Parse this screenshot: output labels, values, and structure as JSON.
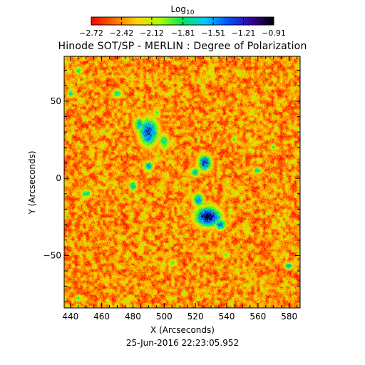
{
  "chart_data": {
    "type": "heatmap",
    "title": "Hinode SOT/SP - MERLIN : Degree of Polarization",
    "xlabel": "X (Arcseconds)",
    "ylabel": "Y (Arcseconds)",
    "timestamp": "25-Jun-2016 22:23:05.952",
    "xlim": [
      436,
      587
    ],
    "ylim": [
      -84,
      79
    ],
    "x_ticks": [
      440,
      460,
      480,
      500,
      520,
      540,
      560,
      580
    ],
    "y_ticks": [
      -50,
      0,
      50
    ],
    "x_tick_labels": [
      "440",
      "460",
      "480",
      "500",
      "520",
      "540",
      "560",
      "580"
    ],
    "y_tick_labels": [
      "−50",
      "0",
      "50"
    ],
    "colorbar": {
      "title_base": "Log",
      "title_sub": "10",
      "colormap": "rainbow-reversed",
      "range": [
        -2.72,
        -0.91
      ],
      "tick_values": [
        -2.72,
        -2.42,
        -2.12,
        -1.81,
        -1.51,
        -1.21,
        -0.91
      ],
      "tick_labels": [
        "−2.72",
        "−2.42",
        "−2.12",
        "−1.81",
        "−1.51",
        "−1.21",
        "−0.91"
      ],
      "colors": [
        "#ff0000",
        "#ff6a00",
        "#ffd200",
        "#aaff00",
        "#00e55a",
        "#00c8ff",
        "#0050ff",
        "#3a00a0",
        "#000000"
      ]
    },
    "background_level": -2.72,
    "regions": [
      {
        "x": 490,
        "y": 30,
        "rx": 7,
        "ry": 10,
        "peak": -1.3
      },
      {
        "x": 484,
        "y": 35,
        "rx": 4,
        "ry": 5,
        "peak": -1.55
      },
      {
        "x": 500,
        "y": 24,
        "rx": 3.5,
        "ry": 6,
        "peak": -1.7
      },
      {
        "x": 495,
        "y": 42,
        "rx": 3,
        "ry": 3.5,
        "peak": -1.9
      },
      {
        "x": 528,
        "y": -25,
        "rx": 9,
        "ry": 7,
        "peak": -1.0
      },
      {
        "x": 522,
        "y": -14,
        "rx": 4,
        "ry": 5,
        "peak": -1.5
      },
      {
        "x": 536,
        "y": -30,
        "rx": 4,
        "ry": 4,
        "peak": -1.4
      },
      {
        "x": 526,
        "y": 10,
        "rx": 5,
        "ry": 6,
        "peak": -1.3
      },
      {
        "x": 520,
        "y": 4,
        "rx": 3.5,
        "ry": 3.5,
        "peak": -1.6
      },
      {
        "x": 490,
        "y": 8,
        "rx": 3.5,
        "ry": 3.5,
        "peak": -1.5
      },
      {
        "x": 480,
        "y": -5,
        "rx": 3,
        "ry": 4,
        "peak": -1.6
      },
      {
        "x": 470,
        "y": 55,
        "rx": 4,
        "ry": 3.5,
        "peak": -1.8
      },
      {
        "x": 445,
        "y": 70,
        "rx": 3,
        "ry": 3,
        "peak": -1.8
      },
      {
        "x": 440,
        "y": 55,
        "rx": 2.5,
        "ry": 3,
        "peak": -1.7
      },
      {
        "x": 560,
        "y": 5,
        "rx": 3.5,
        "ry": 2.5,
        "peak": -1.7
      },
      {
        "x": 570,
        "y": 20,
        "rx": 2.5,
        "ry": 2.5,
        "peak": -1.9
      },
      {
        "x": 450,
        "y": -10,
        "rx": 4,
        "ry": 3,
        "peak": -1.7
      },
      {
        "x": 580,
        "y": -57,
        "rx": 3.5,
        "ry": 2.5,
        "peak": -1.6
      },
      {
        "x": 505,
        "y": -55,
        "rx": 3,
        "ry": 3,
        "peak": -1.9
      },
      {
        "x": 545,
        "y": 25,
        "rx": 2.5,
        "ry": 2.5,
        "peak": -1.9
      },
      {
        "x": 540,
        "y": -50,
        "rx": 3,
        "ry": 2.5,
        "peak": -1.9
      },
      {
        "x": 460,
        "y": 30,
        "rx": 2.5,
        "ry": 2.5,
        "peak": -2.0
      },
      {
        "x": 445,
        "y": -78,
        "rx": 3,
        "ry": 2.5,
        "peak": -1.9
      },
      {
        "x": 513,
        "y": -75,
        "rx": 2.5,
        "ry": 2.5,
        "peak": -2.0
      },
      {
        "x": 458,
        "y": 10,
        "rx": 2.5,
        "ry": 2.5,
        "peak": -2.0
      },
      {
        "x": 548,
        "y": 68,
        "rx": 2.5,
        "ry": 2.5,
        "peak": -2.0
      }
    ]
  }
}
